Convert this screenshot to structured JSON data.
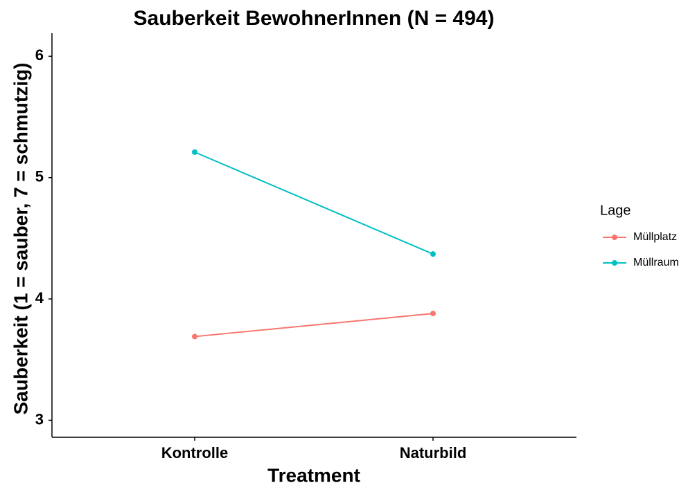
{
  "chart_data": {
    "type": "line",
    "title": "Sauberkeit BewohnerInnen (N = 494)",
    "x_label": "Treatment",
    "y_label": "Sauberkeit (1 = sauber, 7 = schmutzig)",
    "categories": [
      "Kontrolle",
      "Naturbild"
    ],
    "legend_title": "Lage",
    "legend_position": "right",
    "series": [
      {
        "name": "Müllplatz",
        "color": "#F8766D",
        "values": [
          3.69,
          3.88
        ]
      },
      {
        "name": "Müllraum",
        "color": "#00BFC4",
        "values": [
          5.21,
          4.37
        ]
      }
    ],
    "ylim": [
      2.86,
      6.19
    ],
    "yticks": [
      3,
      4,
      5,
      6
    ],
    "grid": false
  }
}
